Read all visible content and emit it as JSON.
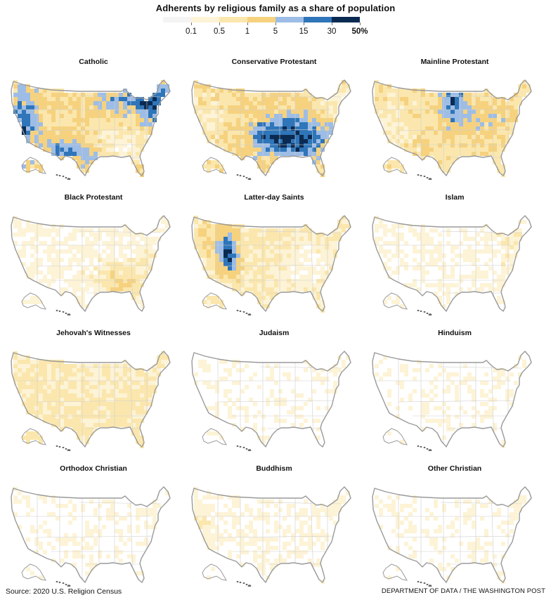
{
  "title": "Adherents by religious family as a share of population",
  "legend": {
    "labels": [
      "0.1",
      "0.5",
      "1",
      "5",
      "15",
      "30",
      "50%"
    ],
    "bold_last": true,
    "colors": [
      "#f4f4f4",
      "#fdf3d6",
      "#fbe7ad",
      "#f6d27f",
      "#9dbde6",
      "#2f75b9",
      "#0b2a52"
    ]
  },
  "maps": [
    {
      "title": "Catholic",
      "pattern": "catholic"
    },
    {
      "title": "Conservative Protestant",
      "pattern": "conservative"
    },
    {
      "title": "Mainline Protestant",
      "pattern": "mainline"
    },
    {
      "title": "Black Protestant",
      "pattern": "black"
    },
    {
      "title": "Latter-day Saints",
      "pattern": "lds"
    },
    {
      "title": "Islam",
      "pattern": "sparse"
    },
    {
      "title": "Jehovah's Witnesses",
      "pattern": "jw"
    },
    {
      "title": "Judaism",
      "pattern": "verysparse"
    },
    {
      "title": "Hinduism",
      "pattern": "verysparse"
    },
    {
      "title": "Orthodox Christian",
      "pattern": "verysparse"
    },
    {
      "title": "Buddhism",
      "pattern": "buddhism"
    },
    {
      "title": "Other Christian",
      "pattern": "verysparse"
    }
  ],
  "footer": {
    "source": "Source: 2020 U.S. Religion Census",
    "credit": "DEPARTMENT OF DATA / THE WASHINGTON POST"
  }
}
